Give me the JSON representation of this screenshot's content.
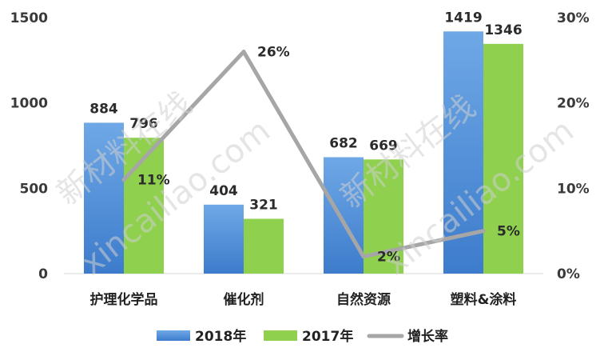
{
  "chart_data": {
    "type": "bar",
    "categories": [
      "护理化学品",
      "催化剂",
      "自然资源",
      "塑料&涂料"
    ],
    "series": [
      {
        "name": "2018年",
        "kind": "bar",
        "axis": "left",
        "color": "#4f8fd8",
        "values": [
          884,
          404,
          682,
          1419
        ],
        "labels": [
          "884",
          "404",
          "682",
          "1419"
        ]
      },
      {
        "name": "2017年",
        "kind": "bar",
        "axis": "left",
        "color": "#8fd14f",
        "values": [
          796,
          321,
          669,
          1346
        ],
        "labels": [
          "796",
          "321",
          "669",
          "1346"
        ]
      },
      {
        "name": "增长率",
        "kind": "line",
        "axis": "right",
        "color": "#a6a6a6",
        "values": [
          11,
          26,
          2,
          5
        ],
        "labels": [
          "11%",
          "26%",
          "2%",
          "5%"
        ]
      }
    ],
    "y_left": {
      "min": 0,
      "max": 1500,
      "ticks": [
        "0",
        "500",
        "1000",
        "1500"
      ]
    },
    "y_right": {
      "min": 0,
      "max": 30,
      "ticks": [
        "0%",
        "10%",
        "20%",
        "30%"
      ]
    },
    "legend": "bottom",
    "grid": false
  },
  "watermark": [
    "新材料在线",
    "xincailiao.com"
  ]
}
